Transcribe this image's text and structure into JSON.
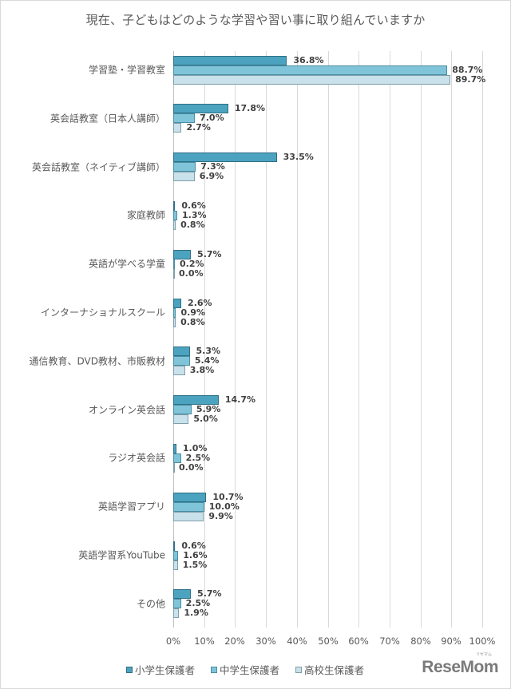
{
  "chart_data": {
    "type": "bar",
    "orientation": "horizontal",
    "title": "現在、子どもはどのような学習や習い事に取り組んでいますか",
    "xlabel": "",
    "ylabel": "",
    "xlim": [
      0,
      100
    ],
    "x_ticks": [
      "0%",
      "10%",
      "20%",
      "30%",
      "40%",
      "50%",
      "60%",
      "70%",
      "80%",
      "90%",
      "100%"
    ],
    "grid": true,
    "legend_position": "bottom",
    "categories": [
      "学習塾・学習教室",
      "英会話教室（日本人講師）",
      "英会話教室（ネイティブ講師）",
      "家庭教師",
      "英語が学べる学童",
      "インターナショナルスクール",
      "通信教育、DVD教材、市販教材",
      "オンライン英会話",
      "ラジオ英会話",
      "英語学習アプリ",
      "英語学習系YouTube",
      "その他"
    ],
    "series": [
      {
        "name": "小学生保護者",
        "color": "#4ba3bf",
        "values": [
          36.8,
          17.8,
          33.5,
          0.6,
          5.7,
          2.6,
          5.3,
          14.7,
          1.0,
          10.7,
          0.6,
          5.7
        ]
      },
      {
        "name": "中学生保護者",
        "color": "#7fc4d8",
        "values": [
          88.7,
          7.0,
          7.3,
          1.3,
          0.2,
          0.9,
          5.4,
          5.9,
          2.5,
          10.0,
          1.6,
          2.5
        ]
      },
      {
        "name": "高校生保護者",
        "color": "#c9e1eb",
        "values": [
          89.7,
          2.7,
          6.9,
          0.8,
          0.0,
          0.8,
          3.8,
          5.0,
          0.0,
          9.9,
          1.5,
          1.9
        ]
      }
    ],
    "value_labels": [
      [
        "36.8%",
        "88.7%",
        "89.7%"
      ],
      [
        "17.8%",
        "7.0%",
        "2.7%"
      ],
      [
        "33.5%",
        "7.3%",
        "6.9%"
      ],
      [
        "0.6%",
        "1.3%",
        "0.8%"
      ],
      [
        "5.7%",
        "0.2%",
        "0.0%"
      ],
      [
        "2.6%",
        "0.9%",
        "0.8%"
      ],
      [
        "5.3%",
        "5.4%",
        "3.8%"
      ],
      [
        "14.7%",
        "5.9%",
        "5.0%"
      ],
      [
        "1.0%",
        "2.5%",
        "0.0%"
      ],
      [
        "10.7%",
        "10.0%",
        "9.9%"
      ],
      [
        "0.6%",
        "1.6%",
        "1.5%"
      ],
      [
        "5.7%",
        "2.5%",
        "1.9%"
      ]
    ]
  },
  "legend": {
    "items": [
      {
        "label": "小学生保護者",
        "color": "#4ba3bf",
        "border": "#2f6f85"
      },
      {
        "label": "中学生保護者",
        "color": "#7fc4d8",
        "border": "#4a8ea3"
      },
      {
        "label": "高校生保護者",
        "color": "#c9e1eb",
        "border": "#7f9ea9"
      }
    ]
  },
  "branding": {
    "logo_text": "ReseMom",
    "logo_small": "リセマム"
  }
}
